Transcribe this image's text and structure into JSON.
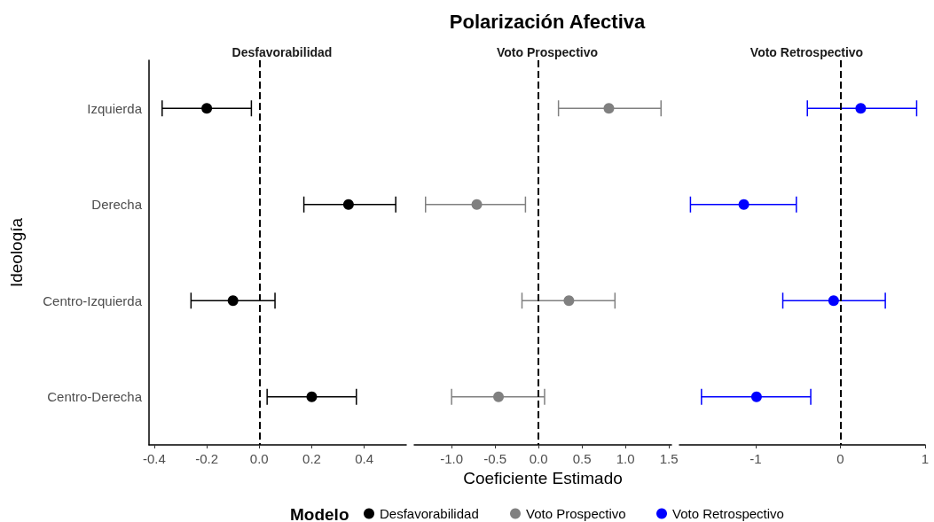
{
  "chart_data": [
    {
      "type": "scatter",
      "orientation": "horizontal",
      "subtitle": "Desfavorabilidad",
      "ylabel": "Ideología",
      "legend_title": "Modelo",
      "legend": "bottom",
      "marker": "circle",
      "grid": false,
      "categories": [
        "Izquierda",
        "Derecha",
        "Centro-Izquierda",
        "Centro-Derecha"
      ],
      "xlim": [
        -0.42,
        0.56
      ],
      "xticks": [
        {
          "value": -0.4,
          "label": "-0.4"
        },
        {
          "value": -0.2,
          "label": "-0.2"
        },
        {
          "value": 0,
          "label": "0.0"
        },
        {
          "value": 0.2,
          "label": "0.2"
        },
        {
          "value": 0.4,
          "label": "0.4"
        }
      ],
      "series": [
        {
          "name": "Desfavorabilidad",
          "color": "#000000",
          "values": [
            -0.2,
            0.34,
            -0.1,
            0.2
          ],
          "errors": [
            [
              -0.37,
              -0.03
            ],
            [
              0.17,
              0.52
            ],
            [
              -0.26,
              0.06
            ],
            [
              0.03,
              0.37
            ]
          ]
        }
      ],
      "ref_lines": [
        {
          "axis": "x",
          "value": 0,
          "color": "#000000",
          "line_style": "dashed"
        }
      ]
    },
    {
      "type": "scatter",
      "orientation": "horizontal",
      "title": "Polarización Afectiva",
      "subtitle": "Voto Prospectivo",
      "xlabel": "Coeficiente Estimado",
      "legend": "bottom",
      "marker": "circle",
      "grid": false,
      "tick_labels": "x",
      "categories": [
        null,
        null,
        null,
        null
      ],
      "xlim": [
        -1.43,
        1.53
      ],
      "xticks": [
        {
          "value": -1,
          "label": "-1.0"
        },
        {
          "value": -0.5,
          "label": "-0.5"
        },
        {
          "value": 0,
          "label": "0.0"
        },
        {
          "value": 0.5,
          "label": "0.5"
        },
        {
          "value": 1,
          "label": "1.0"
        },
        {
          "value": 1.5,
          "label": "1.5"
        }
      ],
      "series": [
        {
          "name": "Voto Prospectivo",
          "color": "#808080",
          "values": [
            0.81,
            -0.71,
            0.35,
            -0.46
          ],
          "errors": [
            [
              0.23,
              1.41
            ],
            [
              -1.3,
              -0.15
            ],
            [
              -0.19,
              0.88
            ],
            [
              -1.0,
              0.07
            ]
          ]
        }
      ],
      "ref_lines": [
        {
          "axis": "x",
          "value": 0,
          "color": "#000000",
          "line_style": "dashed"
        }
      ]
    },
    {
      "type": "scatter",
      "orientation": "horizontal",
      "subtitle": "Voto Retrospectivo",
      "legend": "bottom",
      "marker": "circle",
      "grid": false,
      "tick_labels": "x",
      "categories": [
        null,
        null,
        null,
        null
      ],
      "xlim": [
        -1.9,
        1.0
      ],
      "xticks": [
        -1,
        0,
        1
      ],
      "series": [
        {
          "name": "Voto Retrospectivo",
          "color": "#0000ff",
          "values": [
            0.24,
            -1.14,
            -0.08,
            -0.99
          ],
          "errors": [
            [
              -0.39,
              0.9
            ],
            [
              -1.77,
              -0.52
            ],
            [
              -0.68,
              0.53
            ],
            [
              -1.64,
              -0.35
            ]
          ]
        }
      ],
      "ref_lines": [
        {
          "axis": "x",
          "value": 0,
          "color": "#000000",
          "line_style": "dashed"
        }
      ]
    }
  ]
}
